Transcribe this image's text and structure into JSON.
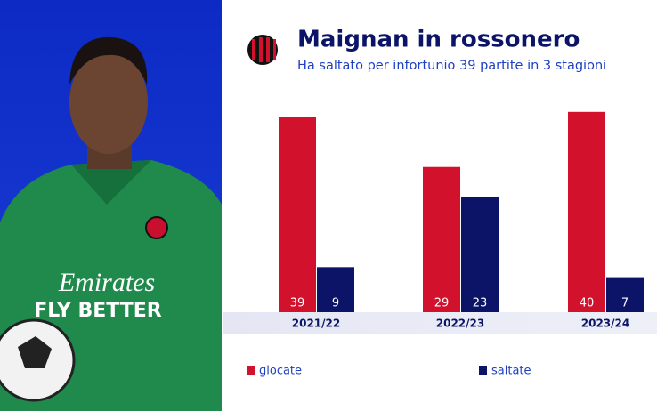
{
  "chart_data": {
    "type": "bar",
    "title": "Maignan in rossonero",
    "subtitle": "Ha saltato per infortunio 39 partite in 3 stagioni",
    "categories": [
      "2021/22",
      "2022/23",
      "2023/24"
    ],
    "series": [
      {
        "name": "giocate",
        "color": "#d2112c",
        "values": [
          39,
          29,
          40
        ]
      },
      {
        "name": "saltate",
        "color": "#0b1466",
        "values": [
          9,
          23,
          7
        ]
      }
    ]
  },
  "photo": {
    "jersey_sponsor": "Emirates",
    "jersey_slogan": "FLY BETTER"
  }
}
